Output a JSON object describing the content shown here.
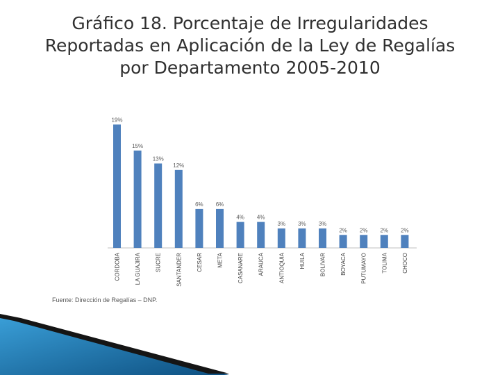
{
  "title": {
    "lines": [
      "Gráfico 18. Porcentaje de Irregularidades",
      "Reportadas en Aplicación de la Ley de Regalías",
      "por Departamento 2005-2010"
    ]
  },
  "source": "Fuente: Dirección de Regalías – DNP.",
  "colors": {
    "bar": "#4f81bd",
    "title": "#303030",
    "accent": "#1f6fa8"
  },
  "chart_data": {
    "type": "bar",
    "categories": [
      "CORDOBA",
      "LA GUAJIRA",
      "SUCRE",
      "SANTANDER",
      "CESAR",
      "META",
      "CASANARE",
      "ARAUCA",
      "ANTIOQUIA",
      "HUILA",
      "BOLIVAR",
      "BOYACA",
      "PUTUMAYO",
      "TOLIMA",
      "CHOCO"
    ],
    "values": [
      19,
      15,
      13,
      12,
      6,
      6,
      4,
      4,
      3,
      3,
      3,
      2,
      2,
      2,
      2
    ],
    "value_labels": [
      "19%",
      "15%",
      "13%",
      "12%",
      "6%",
      "6%",
      "4%",
      "4%",
      "3%",
      "3%",
      "3%",
      "2%",
      "2%",
      "2%",
      "2%"
    ],
    "ylim": [
      0,
      20
    ],
    "grid": false,
    "legend": "none"
  }
}
